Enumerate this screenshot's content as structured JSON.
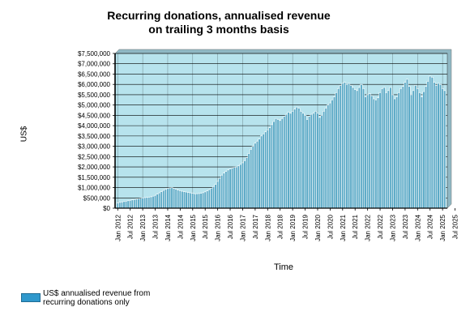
{
  "chart": {
    "title_line1": "Recurring donations, annualised revenue",
    "title_line2": "on trailing 3 months basis",
    "xlabel": "Time",
    "ylabel": "US$",
    "legend_label_line1": "US$ annualised revenue from",
    "legend_label_line2": "recurring donations only"
  },
  "colors": {
    "plot_background": "#b7e3ed",
    "bar_fill": "#5aa9c6",
    "bar_edge": "#ffffff",
    "grid": "#000000",
    "legend_swatch": "#2f98cc"
  },
  "chart_data": {
    "type": "bar",
    "title": "Recurring donations, annualised revenue on trailing 3 months basis",
    "xlabel": "Time",
    "ylabel": "US$",
    "ylim": [
      0,
      7500000
    ],
    "yticks": [
      0,
      500000,
      1000000,
      1500000,
      2000000,
      2500000,
      3000000,
      3500000,
      4000000,
      4500000,
      5000000,
      5500000,
      6000000,
      6500000,
      7000000,
      7500000
    ],
    "ytick_labels": [
      "$0",
      "$500,000",
      "$1,000,000",
      "$1,500,000",
      "$2,000,000",
      "$2,500,000",
      "$3,000,000",
      "$3,500,000",
      "$4,000,000",
      "$4,500,000",
      "$5,000,000",
      "$5,500,000",
      "$6,000,000",
      "$6,500,000",
      "$7,000,000",
      "$7,500,000"
    ],
    "xtick_labels": [
      "Jan 2012",
      "Jul 2012",
      "Jan 2013",
      "Jul 2013",
      "Jan 2014",
      "Jul 2014",
      "Jan 2015",
      "Jul 2015",
      "Jan 2016",
      "Jul 2016",
      "Jan 2017",
      "Jul 2017",
      "Jan 2018",
      "Jul 2018",
      "Jan 2019",
      "Jul 2019",
      "Jan 2020",
      "Jul 2020",
      "Jan 2021",
      "Jul 2021",
      "Jan 2022",
      "Jul 2022",
      "Jan 2023",
      "Jul 2023",
      "Jan 2024",
      "Jul 2024",
      "Jan 2025",
      "Jul 2025"
    ],
    "grid": true,
    "legend_position": "bottom-left",
    "series": [
      {
        "name": "US$ annualised revenue from recurring donations only",
        "x_start": "Jan 2012",
        "x_step": "month",
        "values": [
          250000,
          280000,
          300000,
          320000,
          340000,
          360000,
          380000,
          400000,
          420000,
          440000,
          460000,
          480000,
          500000,
          510000,
          520000,
          530000,
          550000,
          580000,
          620000,
          680000,
          740000,
          800000,
          860000,
          910000,
          950000,
          980000,
          990000,
          960000,
          920000,
          880000,
          850000,
          820000,
          800000,
          780000,
          760000,
          740000,
          720000,
          700000,
          700000,
          710000,
          720000,
          750000,
          790000,
          840000,
          900000,
          970000,
          1050000,
          1150000,
          1300000,
          1450000,
          1600000,
          1700000,
          1780000,
          1850000,
          1900000,
          1940000,
          1980000,
          2000000,
          2050000,
          2120000,
          2200000,
          2300000,
          2450000,
          2650000,
          2850000,
          3000000,
          3150000,
          3250000,
          3350000,
          3500000,
          3600000,
          3700000,
          3800000,
          3900000,
          4050000,
          4200000,
          4350000,
          4300000,
          4250000,
          4350000,
          4450000,
          4550000,
          4650000,
          4600000,
          4700000,
          4800000,
          4900000,
          4850000,
          4700000,
          4600000,
          4500000,
          4300000,
          4450000,
          4550000,
          4600000,
          4700000,
          4600000,
          4400000,
          4500000,
          4700000,
          4850000,
          5000000,
          5100000,
          5250000,
          5400000,
          5600000,
          5800000,
          5950000,
          6050000,
          6100000,
          6000000,
          6050000,
          5950000,
          5850000,
          5750000,
          5700000,
          5850000,
          6000000,
          5800000,
          5400000,
          5500000,
          5550000,
          5450000,
          5300000,
          5250000,
          5350000,
          5600000,
          5800000,
          5850000,
          5600000,
          5700000,
          5850000,
          5500000,
          5300000,
          5400000,
          5600000,
          5800000,
          5900000,
          6100000,
          6250000,
          5900000,
          5500000,
          5700000,
          5950000,
          5800000,
          5600000,
          5400000,
          5650000,
          5900000,
          6150000,
          6400000,
          6350000,
          6100000,
          5950000,
          6050000,
          6000000,
          5800000,
          5700000
        ]
      }
    ]
  }
}
